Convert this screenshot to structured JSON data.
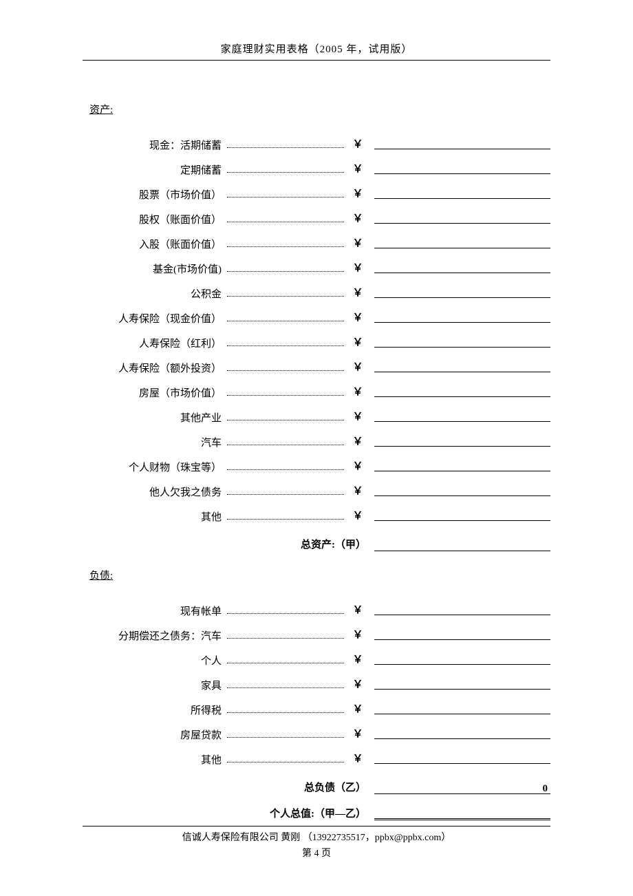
{
  "header": "家庭理财实用表格（2005 年，试用版）",
  "assets": {
    "heading": "资产:",
    "rows": [
      {
        "label": "现金：活期储蓄",
        "currency": "￥"
      },
      {
        "label": "定期储蓄",
        "currency": "￥"
      },
      {
        "label": "股票（市场价值）",
        "currency": "￥"
      },
      {
        "label": "股权（账面价值）",
        "currency": "￥"
      },
      {
        "label": "入股（账面价值）",
        "currency": "￥"
      },
      {
        "label": "基金(市场价值)",
        "currency": "￥"
      },
      {
        "label": "公积金",
        "currency": "￥"
      },
      {
        "label": "人寿保险（现金价值）",
        "currency": "￥"
      },
      {
        "label": "人寿保险（红利）",
        "currency": "￥"
      },
      {
        "label": "人寿保险（额外投资）",
        "currency": "￥"
      },
      {
        "label": "房屋（市场价值）",
        "currency": "￥"
      },
      {
        "label": "其他产业",
        "currency": "￥"
      },
      {
        "label": "汽车",
        "currency": "￥"
      },
      {
        "label": "个人财物（珠宝等）",
        "currency": "￥"
      },
      {
        "label": "他人欠我之债务",
        "currency": "￥"
      },
      {
        "label": "其他",
        "currency": "￥"
      }
    ],
    "total_label": "总资产:（甲）"
  },
  "liabilities": {
    "heading": "负债:",
    "rows": [
      {
        "label": "现有帐单",
        "currency": "￥"
      },
      {
        "label": "分期偿还之债务：汽车",
        "currency": "￥"
      },
      {
        "label": "个人",
        "currency": "￥"
      },
      {
        "label": "家具",
        "currency": "￥"
      },
      {
        "label": "所得税",
        "currency": "￥"
      },
      {
        "label": "房屋贷款",
        "currency": "￥"
      },
      {
        "label": "其他",
        "currency": "￥"
      }
    ],
    "total_label": "总负债（乙）",
    "total_value": "0"
  },
  "net_worth_label": "个人总值:（甲—乙）",
  "footer": {
    "line1": "信诚人寿保险有限公司 黄刚 （13922735517，ppbx@ppbx.com）",
    "line2": "第 4 页"
  }
}
